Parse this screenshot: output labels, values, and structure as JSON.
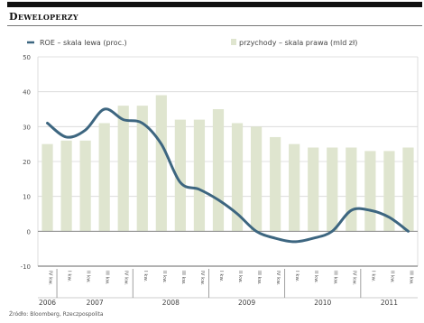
{
  "header": {
    "title": "Deweloperzy"
  },
  "footer": {
    "source": "Źródło: Bloomberg, Rzeczpospolita"
  },
  "colors": {
    "line": "#3d6680",
    "bar": "#dfe5cf",
    "grid": "#d6d6d6",
    "axis": "#666666"
  },
  "chart_data": {
    "type": "bar",
    "title": "Deweloperzy",
    "legend": [
      {
        "name": "ROE – skala lewa (proc.)",
        "type": "line",
        "color": "#3d6680"
      },
      {
        "name": "przychody – skala prawa (mld zł)",
        "type": "bar",
        "color": "#dfe5cf"
      }
    ],
    "legend_placement": "top",
    "grid": true,
    "ylim_left": [
      -10,
      50
    ],
    "y_ticks_left": [
      -10,
      0,
      10,
      20,
      30,
      40,
      50
    ],
    "x_quarter_labels": [
      "IV kw.",
      "I kw.",
      "II kw.",
      "III kw.",
      "IV kw.",
      "I kw.",
      "II kw.",
      "III kw.",
      "IV kw.",
      "I kw.",
      "II kw.",
      "III kw.",
      "IV kw.",
      "I kw.",
      "II kw.",
      "III kw.",
      "IV kw.",
      "I kw.",
      "II kw.",
      "III kw."
    ],
    "year_groups": [
      {
        "label": "2006",
        "start": 0,
        "count": 1
      },
      {
        "label": "2007",
        "start": 1,
        "count": 4
      },
      {
        "label": "2008",
        "start": 5,
        "count": 4
      },
      {
        "label": "2009",
        "start": 9,
        "count": 4
      },
      {
        "label": "2010",
        "start": 13,
        "count": 4
      },
      {
        "label": "2011",
        "start": 17,
        "count": 3
      }
    ],
    "series": [
      {
        "name": "przychody – skala prawa (mld zł)",
        "type": "bar",
        "axis": "right",
        "values": [
          25,
          26,
          26,
          31,
          36,
          36,
          39,
          32,
          32,
          35,
          31,
          30,
          27,
          25,
          24,
          24,
          24,
          23,
          23,
          24
        ]
      },
      {
        "name": "ROE – skala lewa (proc.)",
        "type": "line",
        "axis": "left",
        "values": [
          31,
          27,
          29,
          35,
          32,
          31,
          25,
          14,
          12,
          9,
          5,
          0,
          -2,
          -3,
          -2,
          0,
          6,
          6,
          4,
          0
        ]
      }
    ]
  }
}
